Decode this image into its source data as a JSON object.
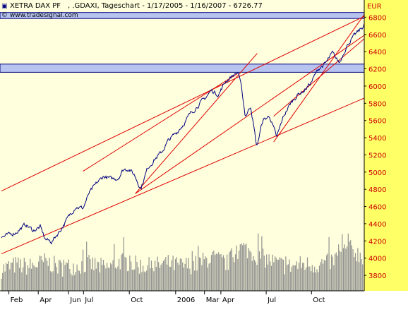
{
  "header": {
    "instrument": "XETRA DAX PF",
    "subtitle": ", .GDAXI, Tageschart - 1/17/2005 - 1/16/2007 - 6726.77",
    "source": "© www.tradesignal.com",
    "currency": "EUR"
  },
  "colors": {
    "background": "#ffffdd",
    "axis_background": "#ffff66",
    "price_line": "#000080",
    "trend_lines": "#e00000",
    "band_fill": "#b8c4f0",
    "band_stroke": "#000080",
    "volume": "#909090"
  },
  "chart_data": {
    "type": "line",
    "title": "XETRA DAX PF , .GDAXI, Tageschart - 1/17/2005 - 1/16/2007 - 6726.77",
    "ylabel": "EUR",
    "ylim": [
      3620,
      7000
    ],
    "yticks": [
      3800,
      4000,
      4200,
      4400,
      4600,
      4800,
      5000,
      5200,
      5400,
      5600,
      5800,
      6000,
      6200,
      6400,
      6600,
      6800
    ],
    "x_tick_labels": [
      "Feb",
      "Apr",
      "Jun",
      "Jul",
      "Oct",
      "2006",
      "Mar",
      "Apr",
      "Jul",
      "Oct"
    ],
    "grid": false,
    "series": [
      {
        "kind": "price",
        "points": [
          [
            "2005-01-17",
            4240
          ],
          [
            "2005-02-01",
            4270
          ],
          [
            "2005-02-15",
            4300
          ],
          [
            "2005-03-07",
            4390
          ],
          [
            "2005-03-22",
            4320
          ],
          [
            "2005-04-05",
            4360
          ],
          [
            "2005-04-15",
            4220
          ],
          [
            "2005-04-28",
            4190
          ],
          [
            "2005-05-16",
            4330
          ],
          [
            "2005-05-31",
            4470
          ],
          [
            "2005-06-15",
            4600
          ],
          [
            "2005-06-30",
            4580
          ],
          [
            "2005-07-12",
            4750
          ],
          [
            "2005-07-29",
            4880
          ],
          [
            "2005-08-10",
            4950
          ],
          [
            "2005-08-25",
            4920
          ],
          [
            "2005-09-08",
            4930
          ],
          [
            "2005-09-19",
            5030
          ],
          [
            "2005-09-30",
            5040
          ],
          [
            "2005-10-12",
            4960
          ],
          [
            "2005-10-24",
            4810
          ],
          [
            "2005-11-07",
            5050
          ],
          [
            "2005-11-21",
            5150
          ],
          [
            "2005-12-05",
            5230
          ],
          [
            "2005-12-19",
            5370
          ],
          [
            "2006-01-04",
            5460
          ],
          [
            "2006-01-18",
            5560
          ],
          [
            "2006-02-01",
            5680
          ],
          [
            "2006-02-15",
            5770
          ],
          [
            "2006-03-01",
            5850
          ],
          [
            "2006-03-15",
            5950
          ],
          [
            "2006-03-29",
            5900
          ],
          [
            "2006-04-12",
            6050
          ],
          [
            "2006-04-26",
            6120
          ],
          [
            "2006-05-08",
            6160
          ],
          [
            "2006-05-15",
            5950
          ],
          [
            "2006-05-22",
            5650
          ],
          [
            "2006-06-02",
            5770
          ],
          [
            "2006-06-14",
            5290
          ],
          [
            "2006-06-26",
            5600
          ],
          [
            "2006-07-10",
            5650
          ],
          [
            "2006-07-24",
            5400
          ],
          [
            "2006-08-07",
            5650
          ],
          [
            "2006-08-21",
            5800
          ],
          [
            "2006-09-04",
            5900
          ],
          [
            "2006-09-18",
            5950
          ],
          [
            "2006-10-02",
            6050
          ],
          [
            "2006-10-16",
            6200
          ],
          [
            "2006-10-30",
            6260
          ],
          [
            "2006-11-13",
            6380
          ],
          [
            "2006-11-27",
            6270
          ],
          [
            "2006-12-08",
            6420
          ],
          [
            "2006-12-19",
            6530
          ],
          [
            "2007-01-02",
            6620
          ],
          [
            "2007-01-12",
            6680
          ],
          [
            "2007-01-16",
            6727
          ]
        ]
      },
      {
        "kind": "volume",
        "points": [
          [
            "2005-01-17",
            3900
          ],
          [
            "2005-02-15",
            3950
          ],
          [
            "2005-03-15",
            3930
          ],
          [
            "2005-04-15",
            3990
          ],
          [
            "2005-05-15",
            3920
          ],
          [
            "2005-06-15",
            3940
          ],
          [
            "2005-07-15",
            3960
          ],
          [
            "2005-08-15",
            3910
          ],
          [
            "2005-09-15",
            4000
          ],
          [
            "2005-10-15",
            3950
          ],
          [
            "2005-11-15",
            3930
          ],
          [
            "2005-12-15",
            3970
          ],
          [
            "2006-01-15",
            3940
          ],
          [
            "2006-02-15",
            3960
          ],
          [
            "2006-03-15",
            4040
          ],
          [
            "2006-04-15",
            3970
          ],
          [
            "2006-05-15",
            4160
          ],
          [
            "2006-06-15",
            4060
          ],
          [
            "2006-07-15",
            3990
          ],
          [
            "2006-08-15",
            3930
          ],
          [
            "2006-09-15",
            3960
          ],
          [
            "2006-10-15",
            3950
          ],
          [
            "2006-11-15",
            4000
          ],
          [
            "2006-12-15",
            4150
          ],
          [
            "2007-01-16",
            4040
          ]
        ]
      }
    ],
    "horizontal_bands": [
      [
        6785,
        6855
      ],
      [
        6160,
        6255
      ]
    ],
    "trend_lines": [
      [
        [
          "2005-01-17",
          4050
        ],
        [
          "2007-01-16",
          5860
        ]
      ],
      [
        [
          "2005-01-17",
          4780
        ],
        [
          "2007-01-16",
          6810
        ]
      ],
      [
        [
          "2005-06-30",
          5010
        ],
        [
          "2006-05-05",
          6140
        ]
      ],
      [
        [
          "2005-10-13",
          4750
        ],
        [
          "2006-06-15",
          6380
        ]
      ],
      [
        [
          "2005-10-13",
          4750
        ],
        [
          "2007-01-16",
          6590
        ]
      ],
      [
        [
          "2006-07-18",
          5650
        ],
        [
          "2007-01-16",
          6550
        ]
      ],
      [
        [
          "2006-07-18",
          5350
        ],
        [
          "2007-01-16",
          6830
        ]
      ]
    ]
  }
}
